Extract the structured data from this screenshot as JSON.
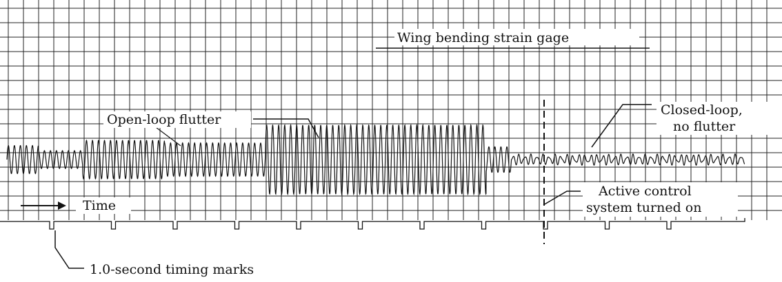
{
  "labels": {
    "strain_gage": "Wing bending strain gage",
    "open_loop": "Open-loop flutter",
    "closed_loop_1": "Closed-loop,",
    "closed_loop_2": "no flutter",
    "active_1": "Active control",
    "active_2": "system turned on",
    "time": "Time",
    "timing_marks": "1.0-second timing marks"
  },
  "signal": {
    "segments": [
      {
        "phase": "initial-oscillation",
        "t_start": 0.0,
        "t_end": 0.5,
        "amplitude": 0.55
      },
      {
        "phase": "low-amplitude",
        "t_start": 0.5,
        "t_end": 1.2,
        "amplitude": 0.35
      },
      {
        "phase": "growing-open-loop-flutter",
        "t_start": 1.2,
        "t_end": 2.5,
        "amplitude": 0.75
      },
      {
        "phase": "moderate",
        "t_start": 2.5,
        "t_end": 4.1,
        "amplitude": 0.65
      },
      {
        "phase": "large-open-loop-flutter",
        "t_start": 4.1,
        "t_end": 7.6,
        "amplitude": 1.35
      },
      {
        "phase": "decay-after-control-on",
        "t_start": 7.6,
        "t_end": 8.0,
        "amplitude": 0.5
      },
      {
        "phase": "closed-loop-no-flutter",
        "t_start": 8.0,
        "t_end": 11.7,
        "amplitude": 0.15
      }
    ],
    "control_on_time_s": 7.6,
    "timing_mark_interval_s": 1.0,
    "timing_mark_count": 11
  },
  "colors": {
    "ink": "#111111",
    "paper": "#ffffff"
  }
}
